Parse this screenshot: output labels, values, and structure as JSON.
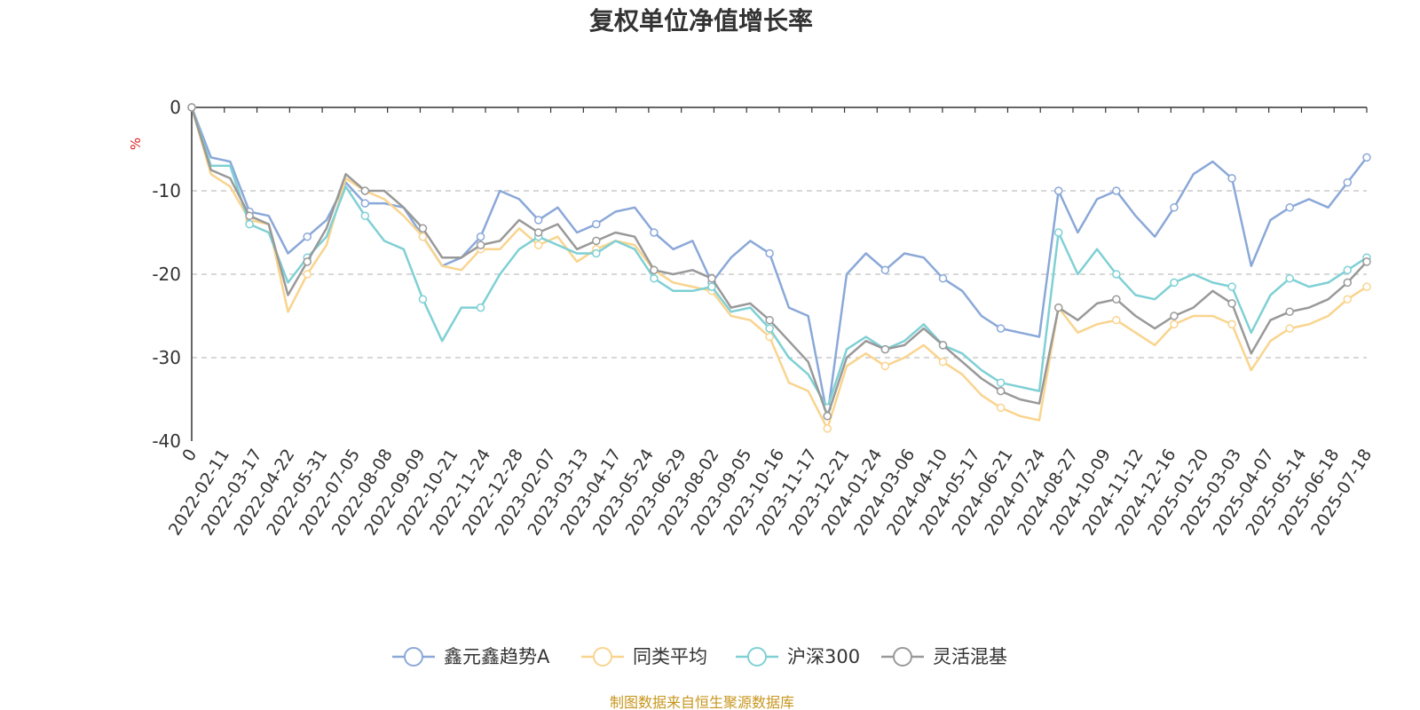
{
  "chart_data": {
    "type": "line",
    "title": "复权单位净值增长率",
    "ylabel": "%",
    "ylim": [
      -40,
      0
    ],
    "yticks": [
      0,
      -10,
      -20,
      -30,
      -40
    ],
    "grid": true,
    "legend_position": "bottom-center",
    "source_note": "制图数据来自恒生聚源数据库",
    "x_tick_labels": [
      "0",
      "2022-02-11",
      "2022-03-17",
      "2022-04-22",
      "2022-05-31",
      "2022-07-05",
      "2022-08-08",
      "2022-09-09",
      "2022-10-21",
      "2022-11-24",
      "2022-12-28",
      "2023-02-07",
      "2023-03-13",
      "2023-04-17",
      "2023-05-24",
      "2023-06-29",
      "2023-08-02",
      "2023-09-05",
      "2023-10-16",
      "2023-11-17",
      "2023-12-21",
      "2024-01-24",
      "2024-03-06",
      "2024-04-10",
      "2024-05-17",
      "2024-06-21",
      "2024-07-24",
      "2024-08-27",
      "2024-10-09",
      "2024-11-12",
      "2024-12-16",
      "2025-01-20",
      "2025-03-03",
      "2025-04-07",
      "2025-05-14",
      "2025-06-18",
      "2025-07-18"
    ],
    "series": [
      {
        "name": "鑫元鑫趋势A",
        "color": "#8aa8d8",
        "values": [
          0,
          -6,
          -6.5,
          -12.5,
          -13,
          -17.5,
          -15.5,
          -13.5,
          -9,
          -11.5,
          -11.5,
          -12,
          -15.5,
          -19,
          -18,
          -15.5,
          -10,
          -11,
          -13.5,
          -12,
          -15,
          -14,
          -12.5,
          -12,
          -15,
          -17,
          -16,
          -21,
          -18,
          -16,
          -17.5,
          -24,
          -25,
          -37,
          -20,
          -17.5,
          -19.5,
          -17.5,
          -18,
          -20.5,
          -22,
          -25,
          -26.5,
          -27,
          -27.5,
          -10,
          -15,
          -11,
          -10,
          -13,
          -15.5,
          -12,
          -8,
          -6.5,
          -8.5,
          -19,
          -13.5,
          -12,
          -11,
          -12,
          -9,
          -6
        ]
      },
      {
        "name": "同类平均",
        "color": "#f9d48e",
        "values": [
          0,
          -8,
          -9.5,
          -13.5,
          -14,
          -24.5,
          -20,
          -16.5,
          -8.5,
          -10,
          -11,
          -13,
          -15.5,
          -19,
          -19.5,
          -17,
          -17,
          -14.5,
          -16.5,
          -15.5,
          -18.5,
          -17,
          -16,
          -16.5,
          -19.5,
          -21,
          -21.5,
          -22,
          -25,
          -25.5,
          -27.5,
          -33,
          -34,
          -38.5,
          -31,
          -29.5,
          -31,
          -30,
          -28.5,
          -30.5,
          -32,
          -34.5,
          -36,
          -37,
          -37.5,
          -24,
          -27,
          -26,
          -25.5,
          -27,
          -28.5,
          -26,
          -25,
          -25,
          -26,
          -31.5,
          -28,
          -26.5,
          -26,
          -25,
          -23,
          -21.5
        ]
      },
      {
        "name": "沪深300",
        "color": "#7fd0d5",
        "values": [
          0,
          -7,
          -7,
          -14,
          -15,
          -21,
          -18,
          -15.5,
          -9.5,
          -13,
          -16,
          -17,
          -23,
          -28,
          -24,
          -24,
          -20,
          -17,
          -15.5,
          -16.5,
          -17.5,
          -17.5,
          -16,
          -17,
          -20.5,
          -22,
          -22,
          -21.5,
          -24.5,
          -24,
          -26.5,
          -30,
          -32,
          -36,
          -29,
          -27.5,
          -29,
          -28,
          -26,
          -28.5,
          -29.5,
          -31.5,
          -33,
          -33.5,
          -34,
          -15,
          -20,
          -17,
          -20,
          -22.5,
          -23,
          -21,
          -20,
          -21,
          -21.5,
          -27,
          -22.5,
          -20.5,
          -21.5,
          -21,
          -19.5,
          -18
        ]
      },
      {
        "name": "灵活混基",
        "color": "#999999",
        "values": [
          0,
          -7.5,
          -8.5,
          -13,
          -14,
          -22.5,
          -18.5,
          -14.5,
          -8,
          -10,
          -10,
          -12,
          -14.5,
          -18,
          -18,
          -16.5,
          -16,
          -13.5,
          -15,
          -14,
          -17,
          -16,
          -15,
          -15.5,
          -19.5,
          -20,
          -19.5,
          -20.5,
          -24,
          -23.5,
          -25.5,
          -28,
          -30.5,
          -37,
          -30,
          -28,
          -29,
          -28.5,
          -26.5,
          -28.5,
          -30.5,
          -32.5,
          -34,
          -35,
          -35.5,
          -24,
          -25.5,
          -23.5,
          -23,
          -25,
          -26.5,
          -25,
          -24,
          -22,
          -23.5,
          -29.5,
          -25.5,
          -24.5,
          -24,
          -23,
          -21,
          -18.5
        ]
      }
    ]
  }
}
